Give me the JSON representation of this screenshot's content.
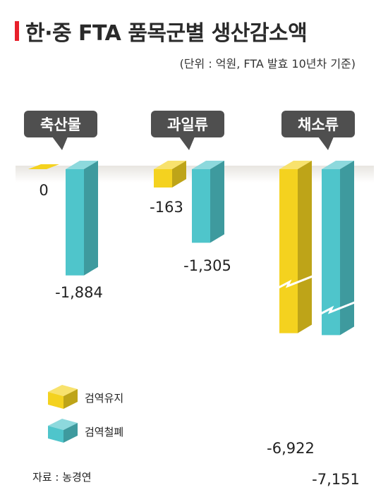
{
  "title": "한·중 FTA 품목군별 생산감소액",
  "subtitle": "(단위 : 억원, FTA 발효 10년차 기준)",
  "source": "자료 : 농경연",
  "colors": {
    "title_accent": "#e8202b",
    "series_maintain": "#f4d21f",
    "series_removed": "#4fc5cb",
    "label_box": "#4f4f4f",
    "baseline_shade": "#e7e5e0"
  },
  "chart_data": {
    "type": "bar",
    "title": "한·중 FTA 품목군별 생산감소액",
    "subtitle": "(단위 : 억원, FTA 발효 10년차 기준)",
    "categories": [
      "축산물",
      "과일류",
      "채소류"
    ],
    "series": [
      {
        "name": "검역유지",
        "values": [
          0,
          -163,
          -6922
        ],
        "labels": [
          "0",
          "-163",
          "-6,922"
        ]
      },
      {
        "name": "검역철폐",
        "values": [
          -1884,
          -1305,
          -7151
        ],
        "labels": [
          "-1,884",
          "-1,305",
          "-7,151"
        ]
      }
    ],
    "axis_break": true,
    "legend_position": "bottom-left",
    "grid": false
  }
}
